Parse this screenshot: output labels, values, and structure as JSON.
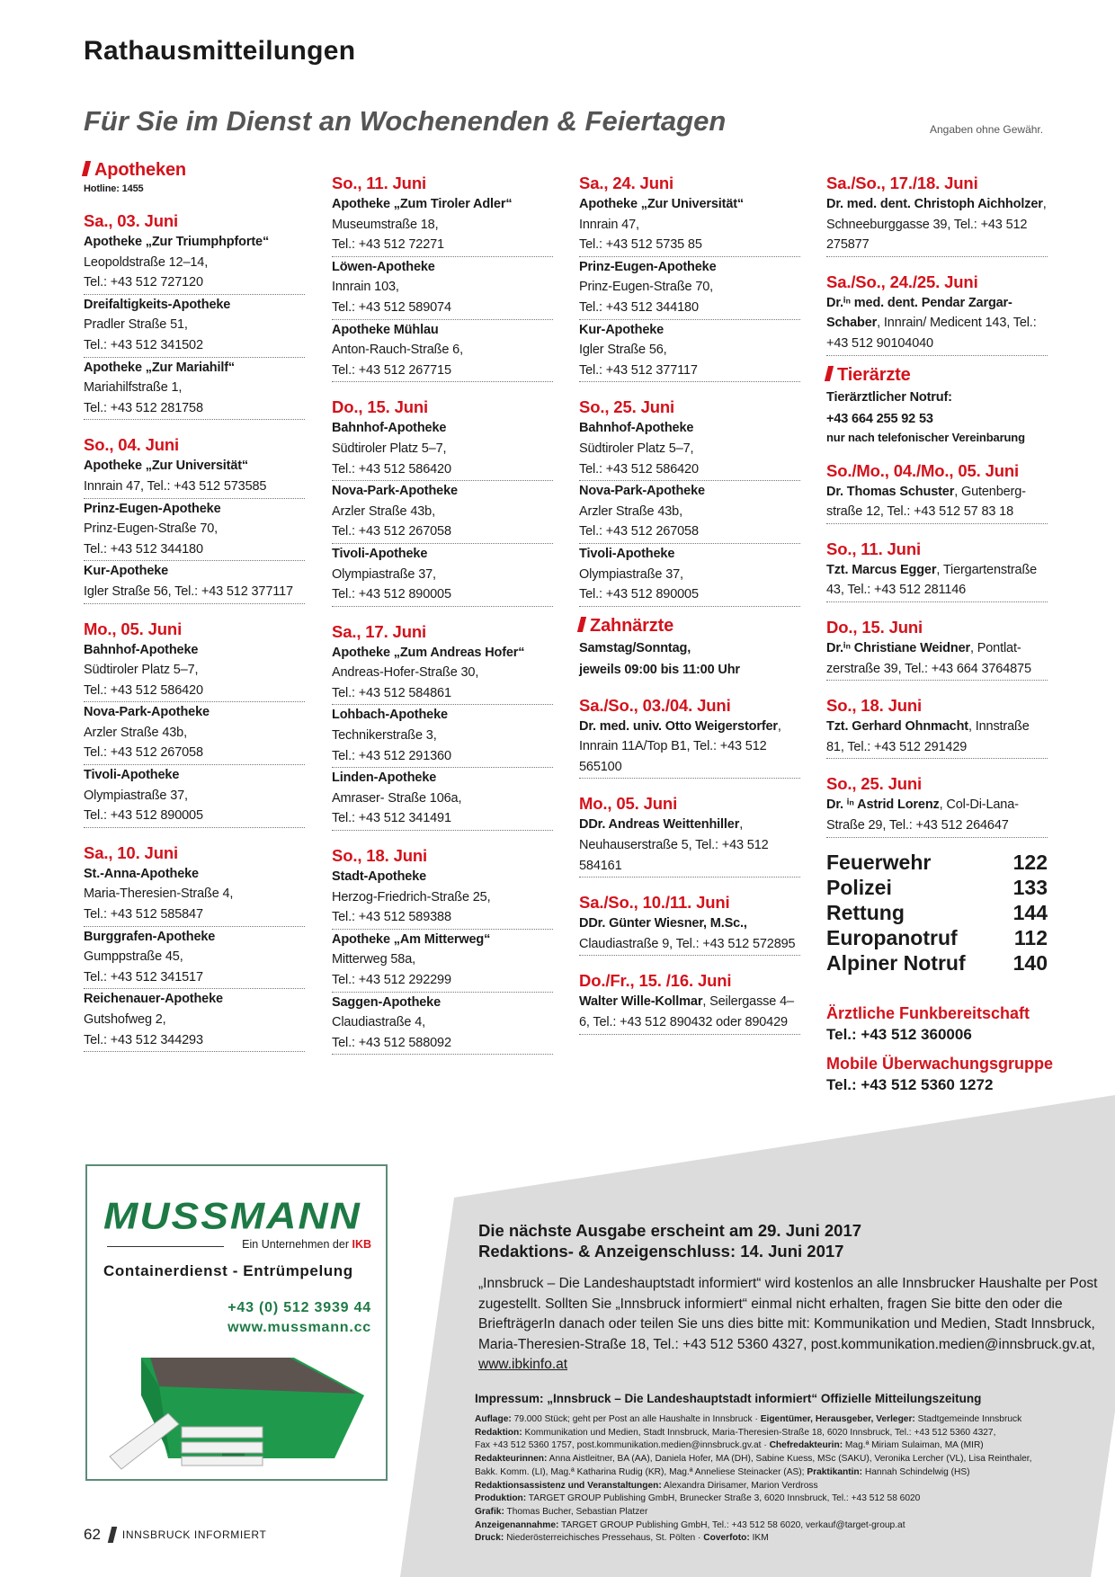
{
  "header": {
    "title": "Rathausmitteilungen",
    "subtitle": "Für Sie im Dienst an Wochenenden & Feiertagen",
    "disclaimer": "Angaben ohne Gewähr."
  },
  "colors": {
    "accent": "#d4121b",
    "brand_green": "#1e7a45",
    "panel_grey": "#dcdcdc"
  },
  "columns": [
    [
      {
        "section": "Apotheken",
        "hotline": "Hotline: 1455"
      },
      {
        "date": "Sa., 03. Juni",
        "kind": "pharmacy",
        "entries": [
          {
            "name": "Apotheke „Zur Triumphpforte“",
            "lines": [
              "Leopoldstraße 12–14,",
              "Tel.: +43 512 727120"
            ]
          },
          {
            "name": "Dreifaltigkeits-Apotheke",
            "lines": [
              "Pradler Straße 51,",
              "Tel.: +43 512 341502"
            ]
          },
          {
            "name": "Apotheke „Zur Mariahilf“",
            "lines": [
              "Mariahilfstraße 1,",
              "Tel.: +43 512 281758"
            ]
          }
        ]
      },
      {
        "date": "So., 04. Juni",
        "kind": "pharmacy",
        "entries": [
          {
            "name": "Apotheke „Zur Universität“",
            "lines": [
              "Innrain 47, Tel.: +43 512 573585"
            ]
          },
          {
            "name": "Prinz-Eugen-Apotheke",
            "lines": [
              "Prinz-Eugen-Straße 70,",
              "Tel.: +43 512 344180"
            ]
          },
          {
            "name": "Kur-Apotheke",
            "lines": [
              "Igler Straße 56, Tel.: +43 512 377117"
            ]
          }
        ]
      },
      {
        "date": "Mo., 05. Juni",
        "kind": "pharmacy",
        "entries": [
          {
            "name": "Bahnhof-Apotheke",
            "lines": [
              "Südtiroler Platz 5–7,",
              "Tel.: +43 512 586420"
            ]
          },
          {
            "name": "Nova-Park-Apotheke",
            "lines": [
              "Arzler Straße 43b,",
              "Tel.: +43 512 267058"
            ]
          },
          {
            "name": "Tivoli-Apotheke",
            "lines": [
              "Olympiastraße 37,",
              "Tel.: +43 512 890005"
            ]
          }
        ]
      },
      {
        "date": "Sa., 10. Juni",
        "kind": "pharmacy",
        "entries": [
          {
            "name": "St.-Anna-Apotheke",
            "lines": [
              "Maria-Theresien-Straße 4,",
              "Tel.: +43 512 585847"
            ]
          },
          {
            "name": "Burggrafen-Apotheke",
            "lines": [
              "Gumppstraße 45,",
              "Tel.: +43 512 341517"
            ]
          },
          {
            "name": "Reichenauer-Apotheke",
            "lines": [
              "Gutshofweg 2,",
              "Tel.: +43 512 344293"
            ]
          }
        ]
      }
    ],
    [
      {
        "date": "So., 11. Juni",
        "kind": "pharmacy",
        "entries": [
          {
            "name": "Apotheke „Zum Tiroler Adler“",
            "lines": [
              "Museumstraße 18,",
              "Tel.: +43 512 72271"
            ]
          },
          {
            "name": "Löwen-Apotheke",
            "lines": [
              "Innrain 103,",
              "Tel.: +43 512 589074"
            ]
          },
          {
            "name": "Apotheke Mühlau",
            "lines": [
              "Anton-Rauch-Straße 6,",
              "Tel.: +43 512 267715"
            ]
          }
        ]
      },
      {
        "date": "Do., 15. Juni",
        "kind": "pharmacy",
        "entries": [
          {
            "name": "Bahnhof-Apotheke",
            "lines": [
              "Südtiroler Platz 5–7,",
              "Tel.: +43 512 586420"
            ]
          },
          {
            "name": "Nova-Park-Apotheke",
            "lines": [
              "Arzler Straße 43b,",
              "Tel.: +43 512 267058"
            ]
          },
          {
            "name": "Tivoli-Apotheke",
            "lines": [
              "Olympiastraße 37,",
              "Tel.: +43 512 890005"
            ]
          }
        ]
      },
      {
        "date": "Sa., 17. Juni",
        "kind": "pharmacy",
        "entries": [
          {
            "name": "Apotheke „Zum Andreas Hofer“",
            "lines": [
              "Andreas-Hofer-Straße 30,",
              "Tel.: +43 512 584861"
            ]
          },
          {
            "name": "Lohbach-Apotheke",
            "lines": [
              "Technikerstraße 3,",
              "Tel.: +43 512 291360"
            ]
          },
          {
            "name": "Linden-Apotheke",
            "lines": [
              "Amraser- Straße 106a,",
              "Tel.: +43 512 341491"
            ]
          }
        ]
      },
      {
        "date": "So., 18. Juni",
        "kind": "pharmacy",
        "entries": [
          {
            "name": "Stadt-Apotheke",
            "lines": [
              "Herzog-Friedrich-Straße 25,",
              "Tel.: +43 512 589388"
            ]
          },
          {
            "name": "Apotheke „Am Mitterweg“",
            "lines": [
              "Mitterweg 58a,",
              "Tel.: +43 512 292299"
            ]
          },
          {
            "name": "Saggen-Apotheke",
            "lines": [
              "Claudiastraße 4,",
              "Tel.: +43 512 588092"
            ]
          }
        ]
      }
    ],
    [
      {
        "date": "Sa., 24. Juni",
        "kind": "pharmacy",
        "entries": [
          {
            "name": "Apotheke „Zur Universität“",
            "lines": [
              "Innrain 47,",
              "Tel.: +43 512 5735 85"
            ]
          },
          {
            "name": "Prinz-Eugen-Apotheke",
            "lines": [
              "Prinz-Eugen-Straße 70,",
              "Tel.: +43 512 344180"
            ]
          },
          {
            "name": "Kur-Apotheke",
            "lines": [
              "Igler Straße 56,",
              "Tel.: +43 512 377117"
            ]
          }
        ]
      },
      {
        "date": "So., 25. Juni",
        "kind": "pharmacy",
        "entries": [
          {
            "name": "Bahnhof-Apotheke",
            "lines": [
              "Südtiroler Platz 5–7,",
              "Tel.: +43 512 586420"
            ]
          },
          {
            "name": "Nova-Park-Apotheke",
            "lines": [
              "Arzler Straße 43b,",
              "Tel.: +43 512 267058"
            ]
          },
          {
            "name": "Tivoli-Apotheke",
            "lines": [
              "Olympiastraße 37,",
              "Tel.: +43 512 890005"
            ]
          }
        ]
      },
      {
        "section": "Zahnärzte",
        "notes": [
          "Samstag/Sonntag,",
          "jeweils 09:00 bis 11:00 Uhr"
        ]
      },
      {
        "date": "Sa./So., 03./04. Juni",
        "kind": "doctor",
        "entries": [
          {
            "name": "Dr. med. univ. Otto Weigers­torfer",
            "rest": ", Innrain 11A/Top B1, Tel.: +43 512 565100"
          }
        ]
      },
      {
        "date": "Mo., 05. Juni",
        "kind": "doctor",
        "entries": [
          {
            "name": "DDr. Andreas Weittenhiller",
            "rest": ", Neuhauserstraße 5, Tel.: +43 512 584161"
          }
        ]
      },
      {
        "date": "Sa./So., 10./11. Juni",
        "kind": "doctor",
        "entries": [
          {
            "name": "DDr. Günter Wiesner, M.Sc.,",
            "rest": " Claudiastraße 9, Tel.: +43 512 572895"
          }
        ]
      },
      {
        "date": "Do./Fr., 15. /16. Juni",
        "kind": "doctor",
        "entries": [
          {
            "name": "Walter Wille-Kollmar",
            "rest": ", Seilergasse 4–6, Tel.: +43 512 890432 oder 890429"
          }
        ]
      }
    ],
    [
      {
        "date": "Sa./So., 17./18. Juni",
        "kind": "doctor",
        "entries": [
          {
            "name": "Dr. med. dent. Christoph Aichholzer",
            "rest": ", Schneeburggasse 39, Tel.: +43 512 275877"
          }
        ]
      },
      {
        "date": "Sa./So., 24./25. Juni",
        "kind": "doctor",
        "entries": [
          {
            "name": "Dr.ⁱⁿ med. dent. Pendar Zargar-Schaber",
            "rest": ", Innrain/ Medicent 143, Tel.: +43 512 90104040"
          }
        ]
      },
      {
        "section": "Tierärzte",
        "notes": [
          "Tierärztlicher Notruf:",
          "+43 664 255 92 53"
        ],
        "small_note": "nur nach telefonischer Vereinbarung"
      },
      {
        "date": "So./Mo., 04./Mo., 05. Juni",
        "kind": "doctor",
        "entries": [
          {
            "name": "Dr. Thomas Schuster",
            "rest": ", Gutenberg­straße 12, Tel.: +43 512 57 83 18"
          }
        ]
      },
      {
        "date": "So., 11. Juni",
        "kind": "doctor",
        "entries": [
          {
            "name": "Tzt. Marcus Egger",
            "rest": ", Tiergarten­straße 43, Tel.: +43 512 281146"
          }
        ]
      },
      {
        "date": "Do., 15. Juni",
        "kind": "doctor",
        "entries": [
          {
            "name": "Dr.ⁱⁿ Christiane Weidner",
            "rest": ", Pontlat­zerstraße 39, Tel.: +43 664 3764875"
          }
        ]
      },
      {
        "date": "So., 18. Juni",
        "kind": "doctor",
        "entries": [
          {
            "name": "Tzt. Gerhard Ohnmacht",
            "rest": ", Innstraße 81, Tel.: +43 512 291429"
          }
        ]
      },
      {
        "date": "So., 25. Juni",
        "kind": "doctor",
        "entries": [
          {
            "name": "Dr. ⁱⁿ Astrid Lorenz",
            "rest": ", Col-Di-Lana-Straße 29, Tel.: +43 512 264647"
          }
        ]
      }
    ]
  ],
  "emergency": [
    {
      "label": "Feuerwehr",
      "number": "122"
    },
    {
      "label": "Polizei",
      "number": "133"
    },
    {
      "label": "Rettung",
      "number": "144"
    },
    {
      "label": "Europanotruf",
      "number": "112"
    },
    {
      "label": "Alpiner Notruf",
      "number": "140"
    }
  ],
  "services": [
    {
      "title": "Ärztliche Funkbereitschaft",
      "phone": "Tel.: +43 512 360006"
    },
    {
      "title": "Mobile Überwachungsgruppe",
      "phone": "Tel.: +43 512 5360 1272"
    }
  ],
  "ad": {
    "logo": "MUSSMANN",
    "tagline_pre": "Ein Unternehmen der ",
    "tagline_brand": "IKB",
    "service": "Containerdienst - Entrümpelung",
    "phone": "+43 (0) 512 3939 44",
    "web": "www.mussmann.cc"
  },
  "info": {
    "next_issue": "Die nächste Ausgabe erscheint am 29. Juni 2017",
    "deadline": "Redaktions- & Anzeigenschluss: 14. Juni 2017",
    "text": "„Innsbruck – Die Landeshauptstadt informiert“ wird kostenlos an alle Innsbrucker Haushalte per Post zugestellt. Sollten Sie „Innsbruck informiert“ einmal nicht erhalten, fragen Sie bitte den oder die BriefträgerIn danach oder teilen Sie uns dies bitte mit: Kommunikation und Medien, Stadt Innsbruck, Maria-Theresien-Straße 18, Tel.: +43 512 5360 4327, post.kommunikation.medien@innsbruck.gv.at, ",
    "link": "www.ibkinfo.at"
  },
  "impressum": {
    "title": "Impressum: „Innsbruck – Die Landeshauptstadt informiert“ Offizielle Mitteilungszeitung",
    "lines": [
      [
        {
          "b": "Auflage:"
        },
        {
          "t": " 79.000 Stück; geht per Post an alle Haushalte in Innsbruck · "
        },
        {
          "b": "Eigentümer, Herausgeber, Verleger:"
        },
        {
          "t": " Stadtgemeinde Innsbruck"
        }
      ],
      [
        {
          "b": "Redaktion:"
        },
        {
          "t": " Kommunikation und Medien, Stadt Innsbruck, Maria-Theresien-Straße 18, 6020 Innsbruck, Tel.: +43 512 5360 4327,"
        }
      ],
      [
        {
          "t": "Fax +43 512 5360 1757, post.kommunikation.medien@innsbruck.gv.at · "
        },
        {
          "b": "Chefredakteurin:"
        },
        {
          "t": " Mag.ª Miriam Sulaiman, MA (MIR)"
        }
      ],
      [
        {
          "b": "Redakteurinnen:"
        },
        {
          "t": " Anna Aistleitner, BA (AA), Daniela Hofer, MA (DH), Sabine Kuess, MSc (SAKU), Veronika Lercher (VL), Lisa Reinthaler,"
        }
      ],
      [
        {
          "t": "Bakk. Komm. (LI), Mag.ª Katharina Rudig (KR), Mag.ª Anneliese Steinacker (AS); "
        },
        {
          "b": "Praktikantin:"
        },
        {
          "t": " Hannah Schindelwig (HS)"
        }
      ],
      [
        {
          "b": "Redaktionsassistenz und Veranstaltungen:"
        },
        {
          "t": " Alexandra Dirisamer, Marion Verdross"
        }
      ],
      [
        {
          "b": "Produktion:"
        },
        {
          "t": " TARGET GROUP Publishing GmbH, Brunecker Straße 3, 6020 Innsbruck, Tel.: +43 512 58 6020"
        }
      ],
      [
        {
          "b": "Grafik:"
        },
        {
          "t": " Thomas Bucher, Sebastian Platzer"
        }
      ],
      [
        {
          "b": "Anzeigenannahme:"
        },
        {
          "t": " TARGET GROUP Publishing GmbH, Tel.: +43 512 58 6020, verkauf@target-group.at"
        }
      ],
      [
        {
          "b": "Druck:"
        },
        {
          "t": " Niederösterreichisches Pressehaus, St. Pölten · "
        },
        {
          "b": "Coverfoto:"
        },
        {
          "t": " IKM"
        }
      ]
    ]
  },
  "footer": {
    "page": "62",
    "publication": "INNSBRUCK INFORMIERT"
  }
}
